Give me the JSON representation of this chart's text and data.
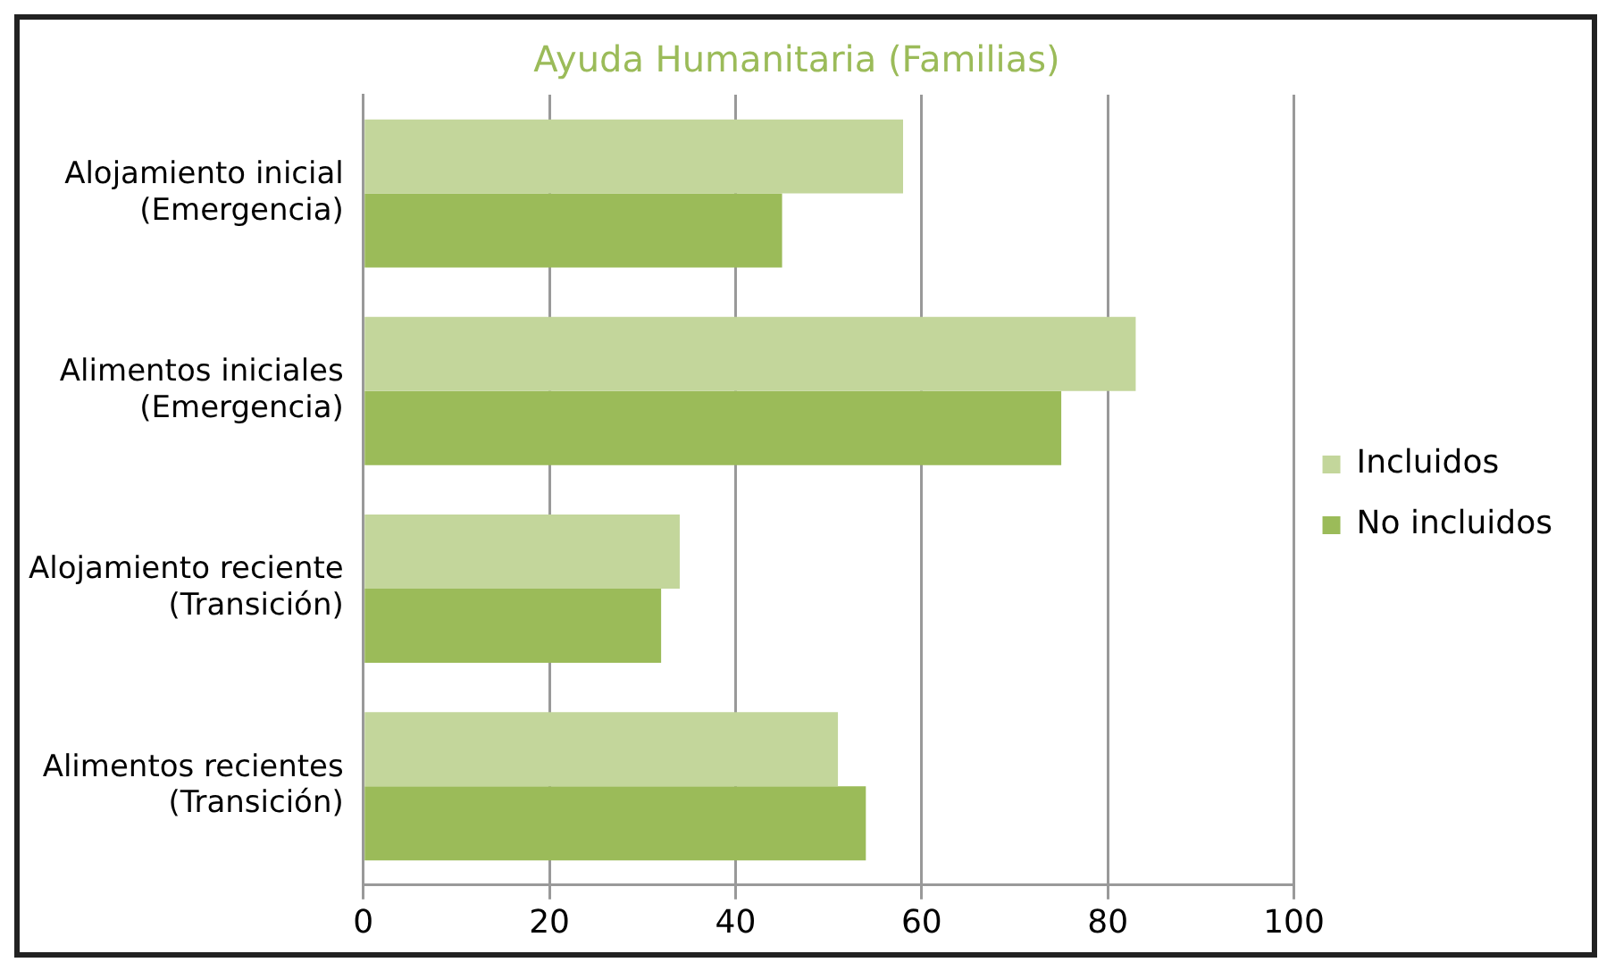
{
  "chart_data": {
    "type": "bar",
    "orientation": "horizontal",
    "title": "Ayuda Humanitaria (Familias)",
    "categories": [
      "Alojamiento inicial (Emergencia)",
      "Alimentos iniciales (Emergencia)",
      "Alojamiento reciente (Transición)",
      "Alimentos recientes (Transición)"
    ],
    "series": [
      {
        "name": "Incluidos",
        "color": "#c3d69b",
        "values": [
          58,
          83,
          34,
          51
        ]
      },
      {
        "name": "No incluidos",
        "color": "#9bbb59",
        "values": [
          45,
          75,
          32,
          54
        ]
      }
    ],
    "xlim": [
      0,
      100
    ],
    "xticks": [
      0,
      20,
      40,
      60,
      80,
      100
    ],
    "grid": "x",
    "legend": "right"
  }
}
